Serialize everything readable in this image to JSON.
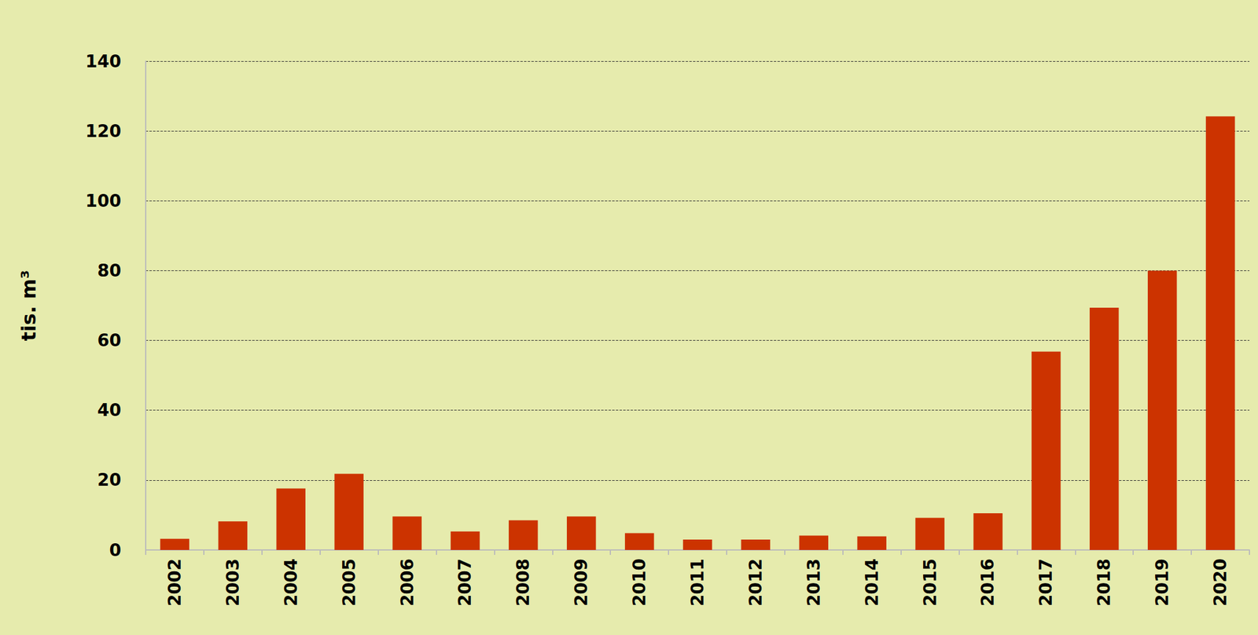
{
  "chart_data": {
    "type": "bar",
    "y_label": "tis. m³",
    "categories": [
      "2002",
      "2003",
      "2004",
      "2005",
      "2006",
      "2007",
      "2008",
      "2009",
      "2010",
      "2011",
      "2012",
      "2013",
      "2014",
      "2015",
      "2016",
      "2017",
      "2018",
      "2019",
      "2020"
    ],
    "values": [
      3.2,
      8.2,
      17.6,
      21.8,
      9.6,
      5.3,
      8.5,
      9.6,
      4.8,
      3.0,
      3.0,
      4.1,
      3.9,
      9.2,
      10.5,
      56.8,
      69.4,
      80.0,
      124.2
    ],
    "color": "#cc3300",
    "ylim": [
      0,
      140
    ],
    "yticks": [
      0,
      20,
      40,
      60,
      80,
      100,
      120,
      140
    ],
    "grid": true
  }
}
